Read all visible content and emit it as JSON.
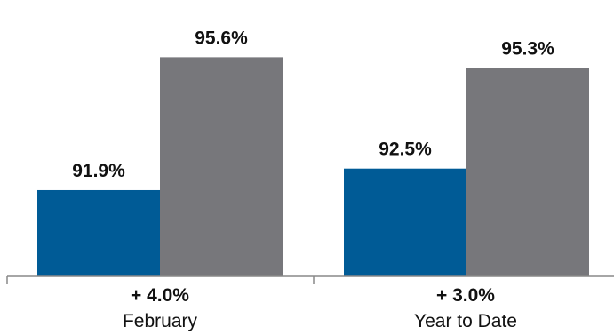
{
  "chart_data": {
    "type": "bar",
    "categories": [
      "February",
      "Year to Date"
    ],
    "category_changes": [
      "+ 4.0%",
      "+ 3.0%"
    ],
    "series": [
      {
        "values": [
          91.9,
          92.5
        ],
        "labels": [
          "91.9%",
          "92.5%"
        ],
        "color": "#005b96"
      },
      {
        "values": [
          95.6,
          95.3
        ],
        "labels": [
          "95.6%",
          "95.3%"
        ],
        "color": "#77777b"
      }
    ],
    "ylim": [
      89.5,
      96.5
    ],
    "grid": false,
    "legend": "none"
  }
}
